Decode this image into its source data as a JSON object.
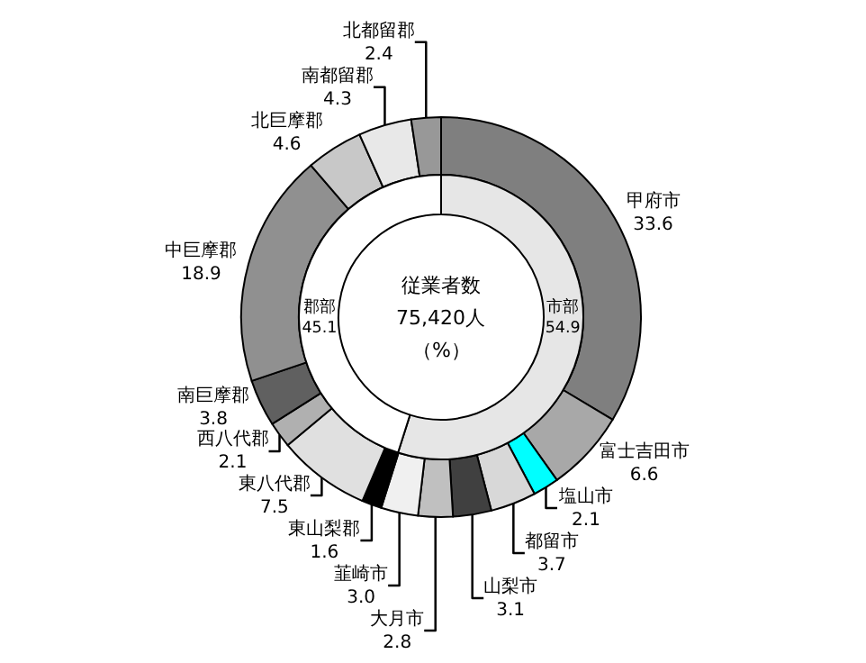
{
  "chart_data": [
    {
      "type": "donut",
      "categories": [
        "甲府市",
        "富士吉田市",
        "塩山市",
        "都留市",
        "山梨市",
        "大月市",
        "韮崎市",
        "東山梨郡",
        "東八代郡",
        "西八代郡",
        "南巨摩郡",
        "中巨摩郡",
        "北巨摩郡",
        "南都留郡",
        "北都留郡"
      ],
      "values": [
        33.6,
        6.6,
        2.1,
        3.7,
        3.1,
        2.8,
        3.0,
        1.6,
        7.5,
        2.1,
        3.8,
        18.9,
        4.6,
        4.3,
        2.4
      ],
      "colors": [
        "#7f7f7f",
        "#a8a8a8",
        "#00ffff",
        "#d8d8d8",
        "#404040",
        "#c0c0c0",
        "#f0f0f0",
        "#000000",
        "#e0e0e0",
        "#b0b0b0",
        "#606060",
        "#909090",
        "#c8c8c8",
        "#e8e8e8",
        "#989898"
      ],
      "value_labels": [
        "33.6",
        "6.6",
        "2.1",
        "3.7",
        "3.1",
        "2.8",
        "3.0",
        "1.6",
        "7.5",
        "2.1",
        "3.8",
        "18.9",
        "4.6",
        "4.3",
        "2.4"
      ]
    },
    {
      "type": "donut",
      "categories": [
        "市部",
        "郡部"
      ],
      "values": [
        54.9,
        45.1
      ],
      "colors": [
        "#e6e6e6",
        "#ffffff"
      ],
      "data_labels": true,
      "annotations": [
        "従業者数",
        "75,420人",
        "（%）"
      ]
    }
  ]
}
